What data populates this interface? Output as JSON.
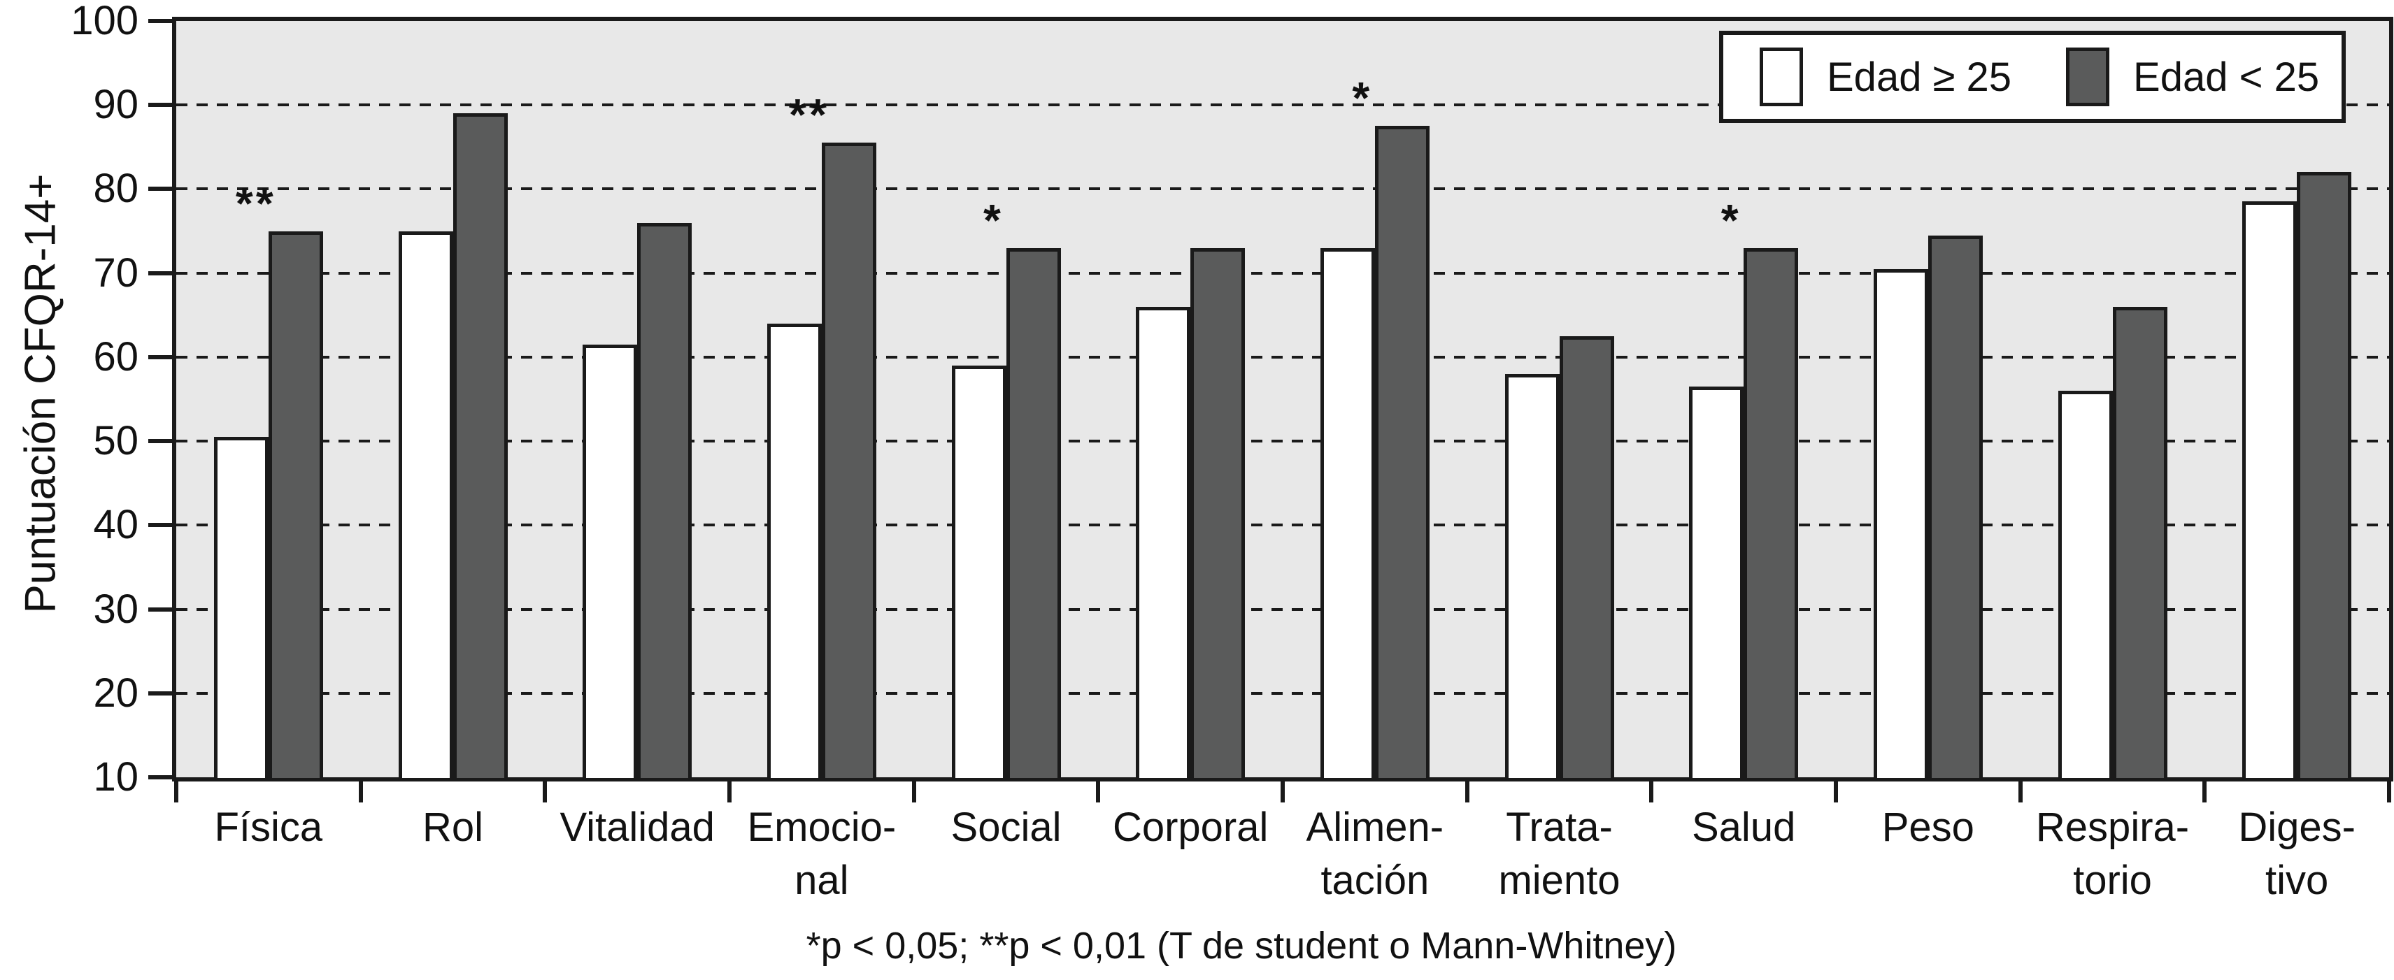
{
  "figure": {
    "ylabel": "Puntuación CFQR-14+",
    "footnote": "*p < 0,05; **p < 0,01 (T de student o Mann-Whitney)"
  },
  "legend": {
    "position": "top-right",
    "items": [
      {
        "label": "Edad ≥ 25",
        "swatch_color": "#ffffff"
      },
      {
        "label": "Edad < 25",
        "swatch_color": "#5a5b5b"
      }
    ]
  },
  "chart_data": {
    "type": "bar",
    "title": "",
    "xlabel": "",
    "ylabel": "Puntuación CFQR-14+",
    "ylim": [
      10,
      100
    ],
    "yticks": [
      10,
      20,
      30,
      40,
      50,
      60,
      70,
      80,
      90,
      100
    ],
    "grid": {
      "horizontal": true,
      "style": "dashed",
      "at": [
        20,
        30,
        40,
        50,
        60,
        70,
        80,
        90
      ]
    },
    "legend_position": "top-right",
    "plot_bg": "#e8e8e8",
    "categories": [
      "Física",
      "Rol",
      "Vitalidad",
      "Emocional",
      "Social",
      "Corporal",
      "Alimentación",
      "Tratamiento",
      "Salud",
      "Peso",
      "Respiratorio",
      "Digestivo"
    ],
    "category_label_lines": [
      [
        "Física"
      ],
      [
        "Rol"
      ],
      [
        "Vitalidad"
      ],
      [
        "Emocio-",
        "nal"
      ],
      [
        "Social"
      ],
      [
        "Corporal"
      ],
      [
        "Alimen-",
        "tación"
      ],
      [
        "Trata-",
        "miento"
      ],
      [
        "Salud"
      ],
      [
        "Peso"
      ],
      [
        "Respira-",
        "torio"
      ],
      [
        "Diges-",
        "tivo"
      ]
    ],
    "series": [
      {
        "name": "Edad ≥ 25",
        "fill": "#ffffff",
        "values": [
          50.5,
          75,
          61.5,
          64,
          59,
          66,
          73,
          58,
          56.5,
          70.5,
          56,
          78.5
        ]
      },
      {
        "name": "Edad < 25",
        "fill": "#5a5b5b",
        "values": [
          75,
          89,
          76,
          85.5,
          73,
          73,
          87.5,
          62.5,
          73,
          74.5,
          66,
          82
        ]
      }
    ],
    "significance_markers": [
      {
        "category_index": 0,
        "category": "Física",
        "marker": "**"
      },
      {
        "category_index": 3,
        "category": "Emocional",
        "marker": "**"
      },
      {
        "category_index": 4,
        "category": "Social",
        "marker": "*"
      },
      {
        "category_index": 6,
        "category": "Alimentación",
        "marker": "*"
      },
      {
        "category_index": 8,
        "category": "Salud",
        "marker": "*"
      }
    ],
    "footnote": "*p < 0,05; **p < 0,01 (T de student o Mann-Whitney)"
  }
}
